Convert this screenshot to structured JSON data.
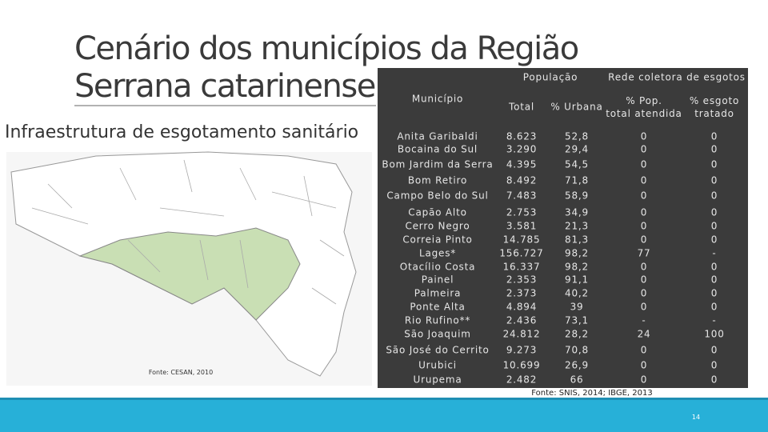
{
  "header": {
    "title_line1": "Cenário dos municípios da Região",
    "title_line2": "Serrana catarinense",
    "subtitle": "Infraestrutura de esgotamento sanitário"
  },
  "map": {
    "caption": "Fonte: CESAN, 2010"
  },
  "table": {
    "group_headers": [
      "População",
      "Rede coletora de esgotos"
    ],
    "columns": [
      "Município",
      "Total",
      "% Urbana",
      "% Pop. total atendida",
      "% esgoto tratado"
    ],
    "rows": [
      [
        "Anita Garibaldi",
        "8.623",
        "52,8",
        "0",
        "0"
      ],
      [
        "Bocaina do Sul",
        "3.290",
        "29,4",
        "0",
        "0"
      ],
      [
        "Bom Jardim da Serra",
        "4.395",
        "54,5",
        "0",
        "0"
      ],
      [
        "Bom Retiro",
        "8.492",
        "71,8",
        "0",
        "0"
      ],
      [
        "Campo Belo do Sul",
        "7.483",
        "58,9",
        "0",
        "0"
      ],
      [
        "Capão Alto",
        "2.753",
        "34,9",
        "0",
        "0"
      ],
      [
        "Cerro Negro",
        "3.581",
        "21,3",
        "0",
        "0"
      ],
      [
        "Correia Pinto",
        "14.785",
        "81,3",
        "0",
        "0"
      ],
      [
        "Lages*",
        "156.727",
        "98,2",
        "77",
        "-"
      ],
      [
        "Otacílio Costa",
        "16.337",
        "98,2",
        "0",
        "0"
      ],
      [
        "Painel",
        "2.353",
        "91,1",
        "0",
        "0"
      ],
      [
        "Palmeira",
        "2.373",
        "40,2",
        "0",
        "0"
      ],
      [
        "Ponte Alta",
        "4.894",
        "39",
        "0",
        "0"
      ],
      [
        "Rio Rufino**",
        "2.436",
        "73,1",
        "-",
        "-"
      ],
      [
        "São Joaquim",
        "24.812",
        "28,2",
        "24",
        "100"
      ],
      [
        "São José do Cerrito",
        "9.273",
        "70,8",
        "0",
        "0"
      ],
      [
        "Urubici",
        "10.699",
        "26,9",
        "0",
        "0"
      ],
      [
        "Urupema",
        "2.482",
        "66",
        "0",
        "0"
      ]
    ],
    "source": "Fonte: SNIS, 2014; IBGE, 2013"
  },
  "footer": {
    "page": "14"
  }
}
